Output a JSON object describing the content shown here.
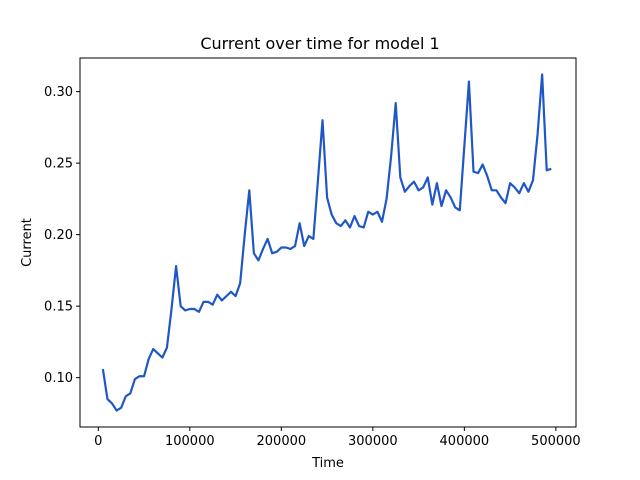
{
  "chart_data": {
    "type": "line",
    "title": "Current over time for model 1",
    "xlabel": "Time",
    "ylabel": "Current",
    "xlim": [
      -20000,
      522000
    ],
    "ylim": [
      0.0655,
      0.3235
    ],
    "xticks": [
      0,
      100000,
      200000,
      300000,
      400000,
      500000
    ],
    "xtick_labels": [
      "0",
      "100000",
      "200000",
      "300000",
      "400000",
      "500000"
    ],
    "yticks": [
      0.1,
      0.15,
      0.2,
      0.25,
      0.3
    ],
    "ytick_labels": [
      "0.10",
      "0.15",
      "0.20",
      "0.25",
      "0.30"
    ],
    "grid": false,
    "legend": false,
    "line_color": "#1f57c7",
    "series": [
      {
        "x": [
          5000,
          10000,
          15000,
          20000,
          25000,
          30000,
          35000,
          40000,
          45000,
          50000,
          55000,
          60000,
          65000,
          70000,
          75000,
          80000,
          85000,
          90000,
          95000,
          100000,
          105000,
          110000,
          115000,
          120000,
          125000,
          130000,
          135000,
          140000,
          145000,
          150000,
          155000,
          160000,
          165000,
          170000,
          175000,
          180000,
          185000,
          190000,
          195000,
          200000,
          205000,
          210000,
          215000,
          220000,
          225000,
          230000,
          235000,
          240000,
          245000,
          250000,
          255000,
          260000,
          265000,
          270000,
          275000,
          280000,
          285000,
          290000,
          295000,
          300000,
          305000,
          310000,
          315000,
          320000,
          325000,
          330000,
          335000,
          340000,
          345000,
          350000,
          355000,
          360000,
          365000,
          370000,
          375000,
          380000,
          385000,
          390000,
          395000,
          400000,
          405000,
          410000,
          415000,
          420000,
          425000,
          430000,
          435000,
          440000,
          445000,
          450000,
          455000,
          460000,
          465000,
          470000,
          475000,
          480000,
          485000,
          490000,
          495000
        ],
        "y": [
          0.106,
          0.085,
          0.082,
          0.077,
          0.079,
          0.087,
          0.089,
          0.099,
          0.101,
          0.101,
          0.113,
          0.12,
          0.117,
          0.114,
          0.121,
          0.148,
          0.178,
          0.15,
          0.147,
          0.148,
          0.148,
          0.146,
          0.153,
          0.153,
          0.151,
          0.158,
          0.154,
          0.157,
          0.16,
          0.157,
          0.166,
          0.2,
          0.231,
          0.187,
          0.182,
          0.19,
          0.197,
          0.187,
          0.188,
          0.191,
          0.191,
          0.19,
          0.192,
          0.208,
          0.192,
          0.199,
          0.197,
          0.238,
          0.28,
          0.226,
          0.214,
          0.208,
          0.206,
          0.21,
          0.205,
          0.213,
          0.206,
          0.205,
          0.216,
          0.214,
          0.216,
          0.209,
          0.225,
          0.255,
          0.292,
          0.24,
          0.23,
          0.234,
          0.237,
          0.231,
          0.233,
          0.24,
          0.221,
          0.236,
          0.22,
          0.231,
          0.226,
          0.219,
          0.217,
          0.262,
          0.307,
          0.244,
          0.243,
          0.249,
          0.241,
          0.231,
          0.231,
          0.226,
          0.222,
          0.236,
          0.233,
          0.229,
          0.236,
          0.23,
          0.238,
          0.27,
          0.312,
          0.245,
          0.246
        ]
      }
    ]
  }
}
